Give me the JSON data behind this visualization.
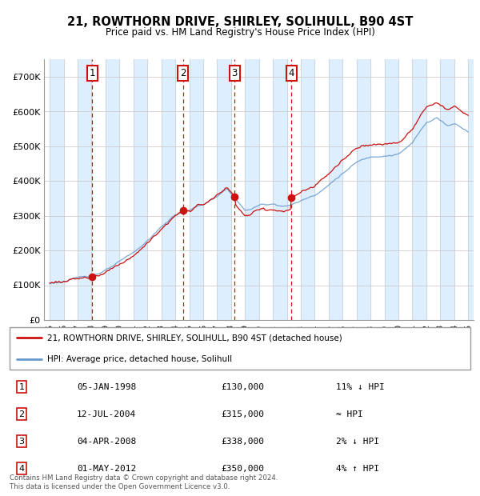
{
  "title": "21, ROWTHORN DRIVE, SHIRLEY, SOLIHULL, B90 4ST",
  "subtitle": "Price paid vs. HM Land Registry's House Price Index (HPI)",
  "ylim": [
    0,
    750000
  ],
  "yticks": [
    0,
    100000,
    200000,
    300000,
    400000,
    500000,
    600000,
    700000
  ],
  "ytick_labels": [
    "£0",
    "£100K",
    "£200K",
    "£300K",
    "£400K",
    "£500K",
    "£600K",
    "£700K"
  ],
  "hpi_color": "#6699cc",
  "price_color": "#cc1111",
  "band_color": "#ddeeff",
  "grid_color": "#cccccc",
  "sale_year_nums": [
    1998.042,
    2004.542,
    2008.25,
    2012.333
  ],
  "sale_prices": [
    130000,
    315000,
    338000,
    350000
  ],
  "sale_labels": [
    "1",
    "2",
    "3",
    "4"
  ],
  "legend_price_label": "21, ROWTHORN DRIVE, SHIRLEY, SOLIHULL, B90 4ST (detached house)",
  "legend_hpi_label": "HPI: Average price, detached house, Solihull",
  "table_entries": [
    {
      "num": "1",
      "date": "05-JAN-1998",
      "price": "£130,000",
      "note": "11% ↓ HPI"
    },
    {
      "num": "2",
      "date": "12-JUL-2004",
      "price": "£315,000",
      "note": "≈ HPI"
    },
    {
      "num": "3",
      "date": "04-APR-2008",
      "price": "£338,000",
      "note": "2% ↓ HPI"
    },
    {
      "num": "4",
      "date": "01-MAY-2012",
      "price": "£350,000",
      "note": "4% ↑ HPI"
    }
  ],
  "footer": "Contains HM Land Registry data © Crown copyright and database right 2024.\nThis data is licensed under the Open Government Licence v3.0.",
  "x_start_year": 1995,
  "x_end_year": 2025
}
